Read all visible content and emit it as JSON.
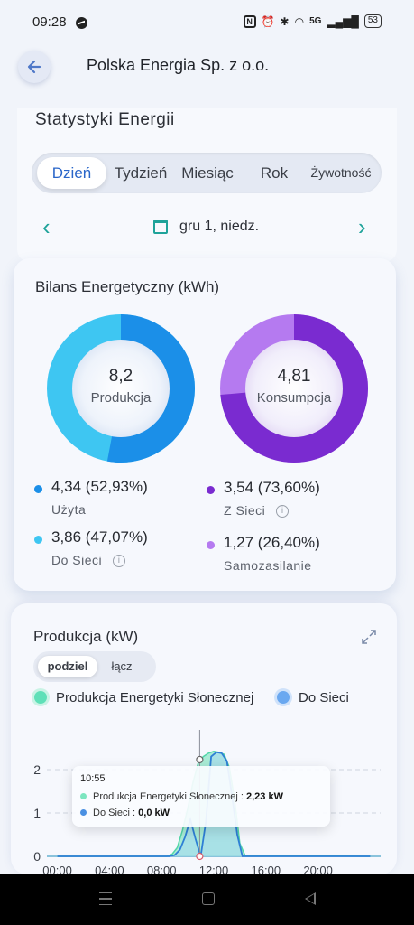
{
  "status": {
    "time": "09:28",
    "network_label": "5G",
    "battery": "53"
  },
  "header": {
    "title": "Polska Energia Sp. z o.o."
  },
  "stats": {
    "title": "Statystyki Energii",
    "tabs": [
      "Dzień",
      "Tydzień",
      "Miesiąc",
      "Rok",
      "Żywotność"
    ],
    "active_tab": "Dzień",
    "date": "gru 1, niedz."
  },
  "balance": {
    "title": "Bilans Energetyczny (kWh)",
    "production": {
      "value": "8,2",
      "label": "Produkcja",
      "used_fraction": 0.5293,
      "items": [
        {
          "value": "4,34 (52,93%)",
          "label": "Użyta",
          "color": "#1b8fe8"
        },
        {
          "value": "3,86 (47,07%)",
          "label": "Do Sieci",
          "color": "#3ec6f2"
        }
      ]
    },
    "consumption": {
      "value": "4,81",
      "label": "Konsumpcja",
      "grid_fraction": 0.736,
      "items": [
        {
          "value": "3,54 (73,60%)",
          "label": "Z Sieci",
          "color": "#7a2bd0"
        },
        {
          "value": "1,27 (26,40%)",
          "label": "Samozasilanie",
          "color": "#b57af0"
        }
      ]
    }
  },
  "production_chart": {
    "title": "Produkcja (kW)",
    "tabs": [
      "podziel",
      "łącz"
    ],
    "active_tab": "podziel",
    "legend": [
      {
        "label": "Produkcja Energetyki Słonecznej",
        "color": "#5fe0b8"
      },
      {
        "label": "Do Sieci",
        "color": "#6aa8f0"
      }
    ],
    "tooltip": {
      "time": "10:55",
      "rows": [
        {
          "label": "Produkcja Energetyki Słonecznej :",
          "value": "2,23 kW",
          "color": "#7de6c0"
        },
        {
          "label": "Do Sieci :",
          "value": "0,0 kW",
          "color": "#4a90e2"
        }
      ]
    }
  },
  "chart_data": {
    "type": "area",
    "title": "Produkcja (kW)",
    "ylim": [
      0,
      2.5
    ],
    "y_ticks": [
      "0",
      "1",
      "2"
    ],
    "x_ticks": [
      "00:00",
      "04:00",
      "08:00",
      "12:00",
      "16:00",
      "20:00"
    ],
    "x_tick_hours": [
      0,
      4,
      8,
      12,
      16,
      20
    ],
    "xlim_hours": [
      -0.8,
      24.8
    ],
    "series": [
      {
        "name": "Produkcja Energetyki Słonecznej",
        "x_hours": [
          0,
          8.4,
          8.8,
          9.2,
          9.6,
          10.0,
          10.4,
          10.8,
          11.0,
          11.2,
          11.6,
          12.0,
          12.4,
          12.8,
          13.2,
          13.6,
          14.0,
          14.4,
          24
        ],
        "values": [
          0,
          0,
          0.05,
          0.2,
          0.6,
          1.1,
          1.7,
          2.15,
          2.23,
          2.3,
          2.38,
          2.42,
          2.4,
          2.35,
          2.05,
          1.3,
          0.3,
          0.02,
          0
        ]
      },
      {
        "name": "Do Sieci",
        "x_hours": [
          0,
          8.6,
          9.0,
          9.4,
          9.8,
          10.2,
          10.6,
          11.0,
          11.4,
          11.8,
          12.2,
          12.6,
          13.0,
          13.4,
          13.8,
          14.2,
          24
        ],
        "values": [
          0,
          0,
          0.03,
          0.15,
          0.45,
          0.85,
          0.4,
          0.0,
          0.8,
          2.3,
          2.4,
          2.38,
          2.2,
          1.4,
          0.5,
          0,
          0
        ]
      }
    ],
    "marker_hour": 10.92
  }
}
